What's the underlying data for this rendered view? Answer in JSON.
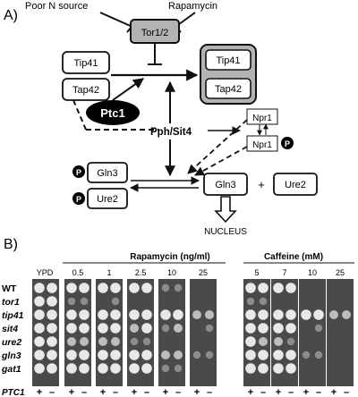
{
  "panelA": {
    "label": "A)",
    "poor_n": "Poor N source",
    "rapamycin": "Rapamycin",
    "tor": "Tor1/2",
    "tip41_left": "Tip41",
    "tap42_left": "Tap42",
    "tip41_right": "Tip41",
    "tap42_right": "Tap42",
    "ptc1": "Ptc1",
    "pph": "Pph/Sit4",
    "npr1_top": "Npr1",
    "npr1_bottom": "Npr1",
    "p": "P",
    "gln3_p": "Gln3",
    "ure2_p": "Ure2",
    "gln3": "Gln3",
    "plus": "+",
    "ure2": "Ure2",
    "nucleus": "NUCLEUS"
  },
  "panelB": {
    "label": "B)",
    "rapa_header": "Rapamycin (ng/ml)",
    "caff_header": "Caffeine (mM)",
    "ypd": "YPD",
    "rapa_cols": [
      "0.5",
      "1",
      "2.5",
      "10",
      "25"
    ],
    "caff_cols": [
      "5",
      "7",
      "10",
      "25"
    ],
    "strains": [
      "WT",
      "tor1",
      "tip41",
      "sit4",
      "ure2",
      "gln3",
      "gat1"
    ],
    "ptc1_label": "PTC1",
    "pm": [
      "+",
      "–"
    ]
  },
  "growth": {
    "ypd": [
      3,
      3,
      3,
      3,
      3,
      3,
      3,
      3,
      3,
      3,
      3,
      3,
      3,
      3
    ],
    "rapa": [
      [
        3,
        1,
        3,
        3,
        2,
        3,
        3,
        3,
        1,
        3,
        3,
        2,
        3,
        3
      ],
      [
        3,
        0,
        3,
        3,
        2,
        3,
        3,
        3,
        1,
        3,
        3,
        2,
        3,
        3
      ],
      [
        3,
        0,
        3,
        2,
        1,
        3,
        3,
        3,
        0,
        3,
        3,
        1,
        3,
        3
      ],
      [
        1,
        0,
        3,
        1,
        0,
        2,
        1,
        1,
        0,
        3,
        2,
        0,
        2,
        1
      ],
      [
        0,
        0,
        2,
        0,
        0,
        1,
        0,
        0,
        0,
        2,
        1,
        0,
        1,
        0
      ]
    ],
    "caff": [
      [
        3,
        1,
        3,
        3,
        3,
        3,
        3,
        3,
        1,
        3,
        3,
        2,
        3,
        3
      ],
      [
        3,
        0,
        3,
        3,
        2,
        3,
        3,
        3,
        0,
        3,
        3,
        1,
        3,
        3
      ],
      [
        0,
        0,
        3,
        0,
        0,
        1,
        0,
        0,
        0,
        3,
        1,
        0,
        1,
        0
      ],
      [
        0,
        0,
        2,
        0,
        0,
        0,
        0,
        0,
        0,
        2,
        0,
        0,
        0,
        0
      ]
    ]
  }
}
